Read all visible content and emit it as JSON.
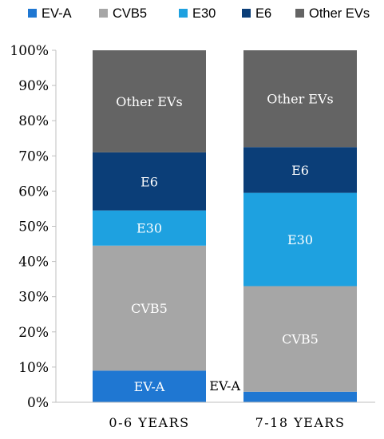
{
  "chart_data": {
    "type": "bar",
    "stacked": true,
    "categories": [
      "0-6 YEARS",
      "7-18 YEARS"
    ],
    "series": [
      {
        "name": "EV-A",
        "color": "#1f77d2",
        "values": [
          9,
          3
        ],
        "labels": [
          "EV-A",
          "EV-A"
        ]
      },
      {
        "name": "CVB5",
        "color": "#a6a6a6",
        "values": [
          35.5,
          30
        ],
        "labels": [
          "CVB5",
          "CVB5"
        ]
      },
      {
        "name": "E30",
        "color": "#1ea1e0",
        "values": [
          10,
          26.5
        ],
        "labels": [
          "E30",
          "E30"
        ]
      },
      {
        "name": "E6",
        "color": "#0b3e78",
        "values": [
          16.5,
          13
        ],
        "labels": [
          "E6",
          "E6"
        ]
      },
      {
        "name": "Other EVs",
        "color": "#646464",
        "values": [
          29,
          27.5
        ],
        "labels": [
          "Other EVs",
          "Other EVs"
        ]
      }
    ],
    "ylim": [
      0,
      100
    ],
    "yticks": [
      "0%",
      "10%",
      "20%",
      "30%",
      "40%",
      "50%",
      "60%",
      "70%",
      "80%",
      "90%",
      "100%"
    ],
    "legend_position": "top",
    "grid": false
  }
}
